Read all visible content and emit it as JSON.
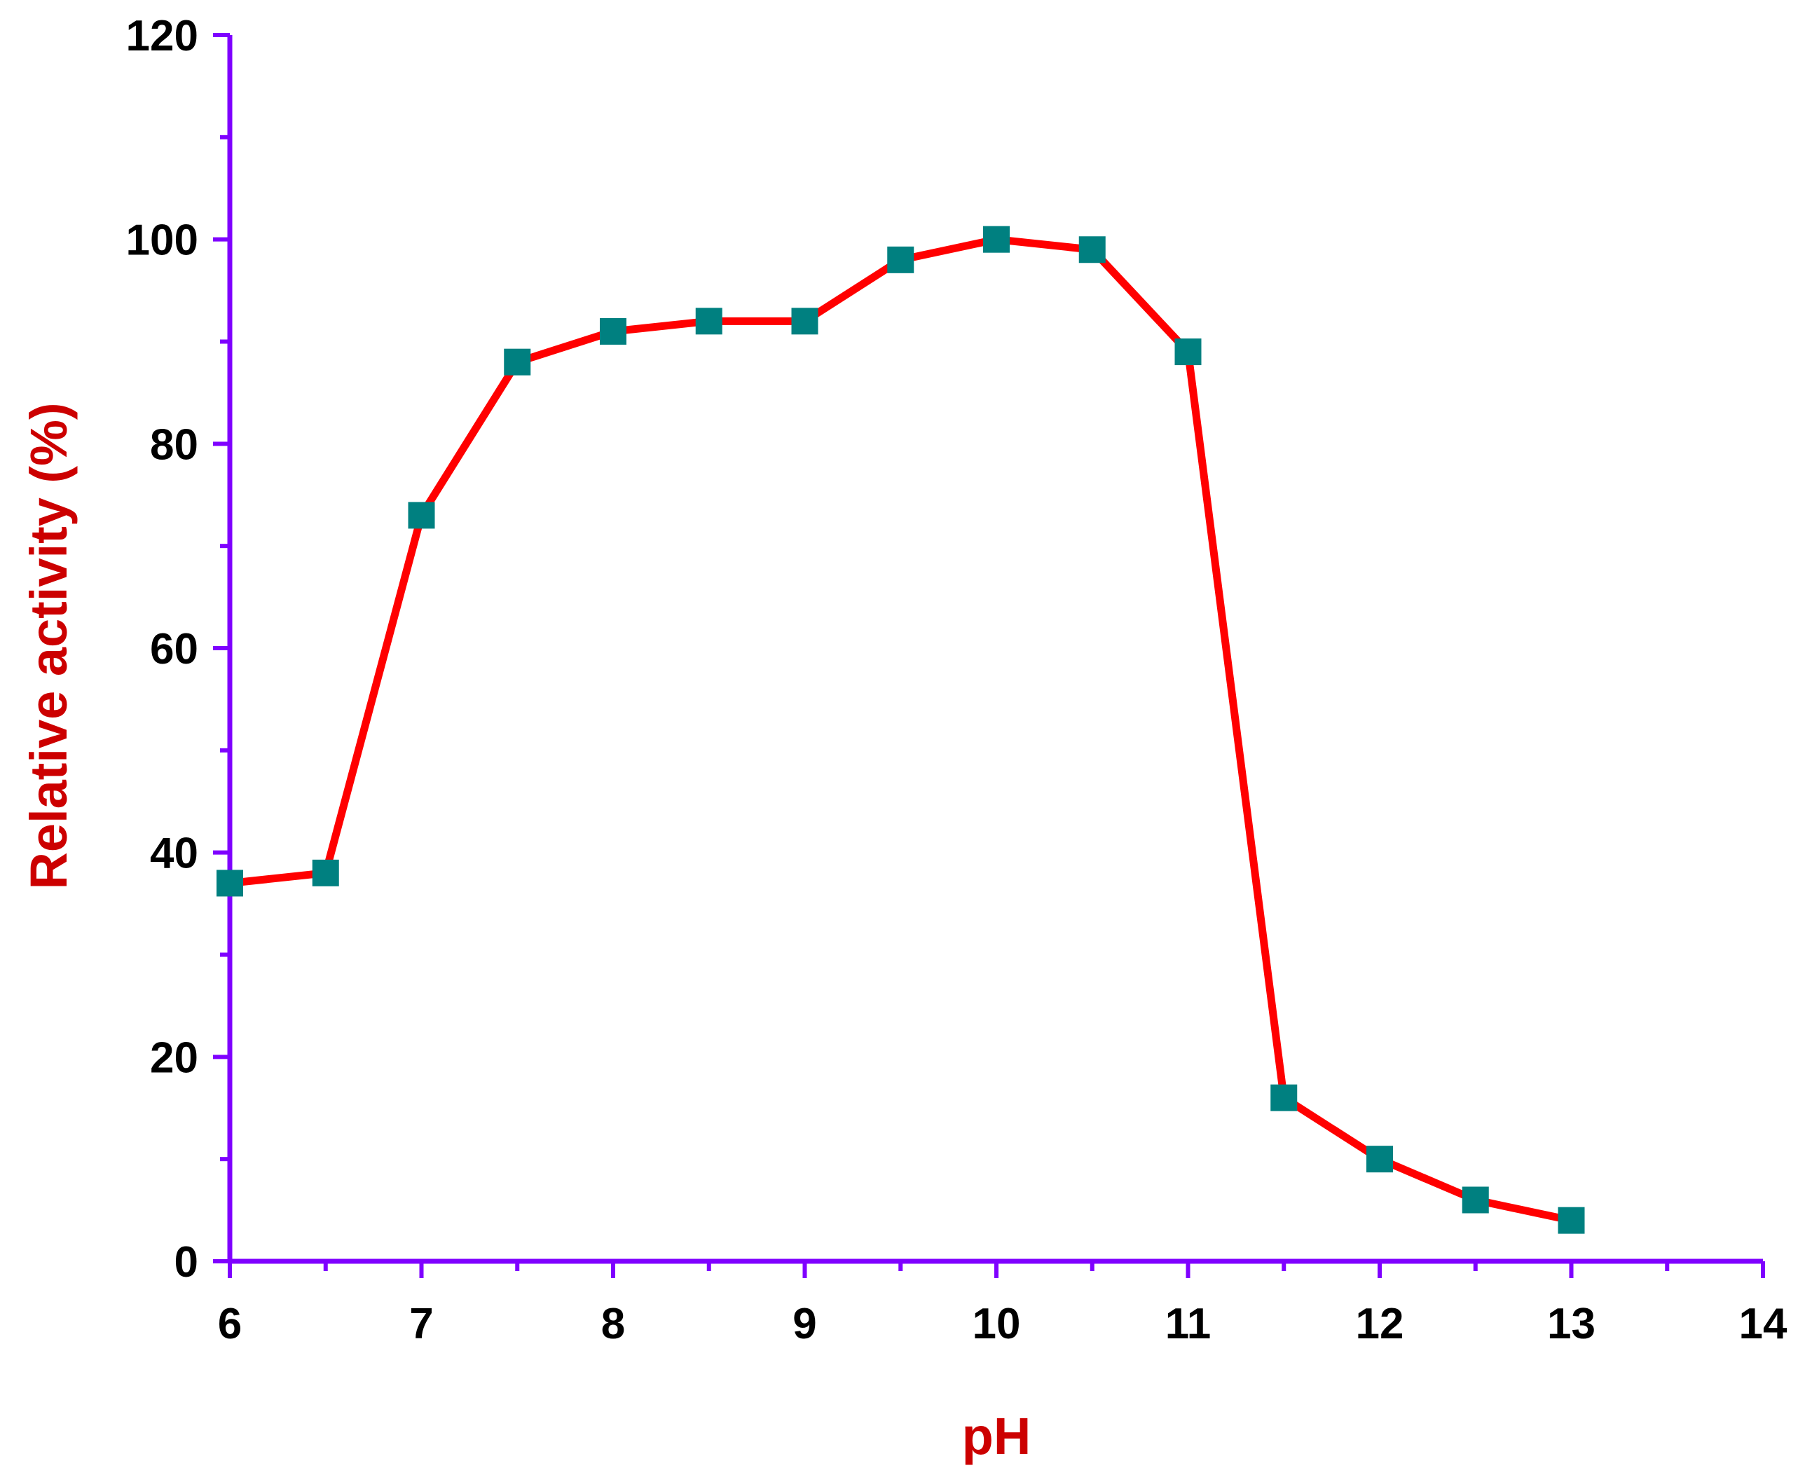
{
  "chart_data": {
    "type": "line",
    "title": "",
    "xlabel": "pH",
    "ylabel": "Relative activity (%)",
    "xlim": [
      6,
      14
    ],
    "ylim": [
      0,
      120
    ],
    "x_ticks": [
      "6",
      "7",
      "8",
      "9",
      "10",
      "11",
      "12",
      "13",
      "14"
    ],
    "y_ticks": [
      "0",
      "20",
      "40",
      "60",
      "80",
      "100",
      "120"
    ],
    "grid": false,
    "legend": "none",
    "series": [
      {
        "x": [
          6,
          6.5,
          7,
          7.5,
          8,
          8.5,
          9,
          9.5,
          10,
          10.5,
          11,
          11.5,
          12,
          12.5,
          13
        ],
        "y": [
          37,
          38,
          73,
          88,
          91,
          92,
          92,
          98,
          100,
          99,
          89,
          16,
          10,
          6,
          4
        ]
      }
    ],
    "colors": {
      "axis": "#7f00ff",
      "line": "#ff0000",
      "marker": "#008080",
      "axis_title": "#cc0000"
    }
  }
}
